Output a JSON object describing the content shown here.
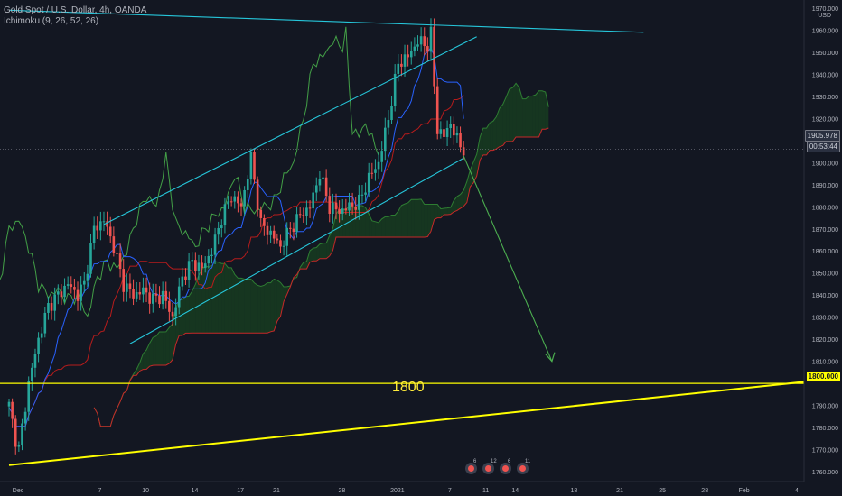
{
  "header": {
    "symbol_line": "Gold Spot / U.S. Dollar, 4h, OANDA",
    "indicator_line": "Ichimoku (9, 26, 52, 26)"
  },
  "price_axis": {
    "unit": "USD",
    "current_price": "1905.978",
    "countdown": "00:53:44",
    "level_1800": "1800.000",
    "ticks": [
      "1970.000",
      "1960.000",
      "1950.000",
      "1940.000",
      "1930.000",
      "1920.000",
      "1910.000",
      "1900.000",
      "1890.000",
      "1880.000",
      "1870.000",
      "1860.000",
      "1850.000",
      "1840.000",
      "1830.000",
      "1820.000",
      "1810.000",
      "1790.000",
      "1780.000",
      "1770.000",
      "1760.000"
    ]
  },
  "annotation": {
    "label": "1800"
  },
  "events": [
    {
      "name": "event-icon",
      "count": "6"
    },
    {
      "name": "event-icon",
      "count": "12"
    },
    {
      "name": "event-icon",
      "count": "6"
    },
    {
      "name": "event-icon",
      "count": "11"
    }
  ],
  "colors": {
    "background": "#131722",
    "bull": "#26a69a",
    "bear": "#ef5350",
    "channel": "#26c6da",
    "support": "#ffff00",
    "forecast": "#4caf50",
    "tenkan": "#2962ff",
    "kijun": "#b71c1c",
    "lagging": "#43a047",
    "cloud_bull": "#1b5e20",
    "cloud_bear": "#7f1d1d"
  },
  "chart_data": {
    "type": "candlestick",
    "title": "Gold Spot / U.S. Dollar, 4h, OANDA",
    "x_labels": [
      "Dec",
      "7",
      "10",
      "14",
      "17",
      "21",
      "28",
      "2021",
      "7",
      "11",
      "14",
      "18",
      "21",
      "25",
      "28",
      "Feb",
      "4"
    ],
    "ylim": [
      1758,
      1972
    ],
    "grid": false,
    "price_path": [
      {
        "t": 0,
        "p": 1790
      },
      {
        "t": 2,
        "p": 1775
      },
      {
        "t": 3,
        "p": 1770
      },
      {
        "t": 6,
        "p": 1800
      },
      {
        "t": 9,
        "p": 1820
      },
      {
        "t": 12,
        "p": 1835
      },
      {
        "t": 15,
        "p": 1840
      },
      {
        "t": 18,
        "p": 1845
      },
      {
        "t": 21,
        "p": 1840
      },
      {
        "t": 23,
        "p": 1845
      },
      {
        "t": 26,
        "p": 1870
      },
      {
        "t": 29,
        "p": 1874
      },
      {
        "t": 32,
        "p": 1862
      },
      {
        "t": 35,
        "p": 1845
      },
      {
        "t": 38,
        "p": 1840
      },
      {
        "t": 41,
        "p": 1842
      },
      {
        "t": 44,
        "p": 1838
      },
      {
        "t": 47,
        "p": 1840
      },
      {
        "t": 50,
        "p": 1830
      },
      {
        "t": 53,
        "p": 1848
      },
      {
        "t": 56,
        "p": 1855
      },
      {
        "t": 59,
        "p": 1852
      },
      {
        "t": 62,
        "p": 1860
      },
      {
        "t": 65,
        "p": 1875
      },
      {
        "t": 68,
        "p": 1885
      },
      {
        "t": 71,
        "p": 1880
      },
      {
        "t": 74,
        "p": 1902
      },
      {
        "t": 77,
        "p": 1872
      },
      {
        "t": 80,
        "p": 1868
      },
      {
        "t": 83,
        "p": 1862
      },
      {
        "t": 86,
        "p": 1870
      },
      {
        "t": 89,
        "p": 1876
      },
      {
        "t": 92,
        "p": 1880
      },
      {
        "t": 95,
        "p": 1895
      },
      {
        "t": 98,
        "p": 1880
      },
      {
        "t": 101,
        "p": 1878
      },
      {
        "t": 104,
        "p": 1880
      },
      {
        "t": 107,
        "p": 1882
      },
      {
        "t": 110,
        "p": 1893
      },
      {
        "t": 113,
        "p": 1900
      },
      {
        "t": 116,
        "p": 1920
      },
      {
        "t": 119,
        "p": 1945
      },
      {
        "t": 122,
        "p": 1948
      },
      {
        "t": 125,
        "p": 1955
      },
      {
        "t": 128,
        "p": 1953
      },
      {
        "t": 129,
        "p": 1958
      },
      {
        "t": 130,
        "p": 1935
      },
      {
        "t": 131,
        "p": 1915
      },
      {
        "t": 133,
        "p": 1912
      },
      {
        "t": 135,
        "p": 1918
      },
      {
        "t": 137,
        "p": 1910
      },
      {
        "t": 139,
        "p": 1906
      }
    ],
    "ichimoku": {
      "tenkan": 9,
      "kijun": 26,
      "senkou_b": 52,
      "displacement": 26
    },
    "annotations": [
      {
        "type": "channel_upper",
        "from": {
          "t": 29,
          "p": 1872
        },
        "to": {
          "t": 143,
          "p": 1957
        }
      },
      {
        "type": "channel_lower",
        "from": {
          "t": 37,
          "p": 1818
        },
        "to": {
          "t": 139,
          "p": 1902
        }
      },
      {
        "type": "resistance",
        "from": {
          "t": 0,
          "p": 1969
        },
        "to": {
          "t": 194,
          "p": 1959
        }
      },
      {
        "type": "support_rising",
        "from": {
          "t": 0,
          "p": 1763
        },
        "to": {
          "t": 245,
          "p": 1801
        }
      },
      {
        "type": "horizontal",
        "p": 1800,
        "label": "1800"
      },
      {
        "type": "forecast_arrow",
        "from": {
          "t": 139,
          "p": 1903
        },
        "to": {
          "t": 166,
          "p": 1810
        }
      }
    ]
  }
}
